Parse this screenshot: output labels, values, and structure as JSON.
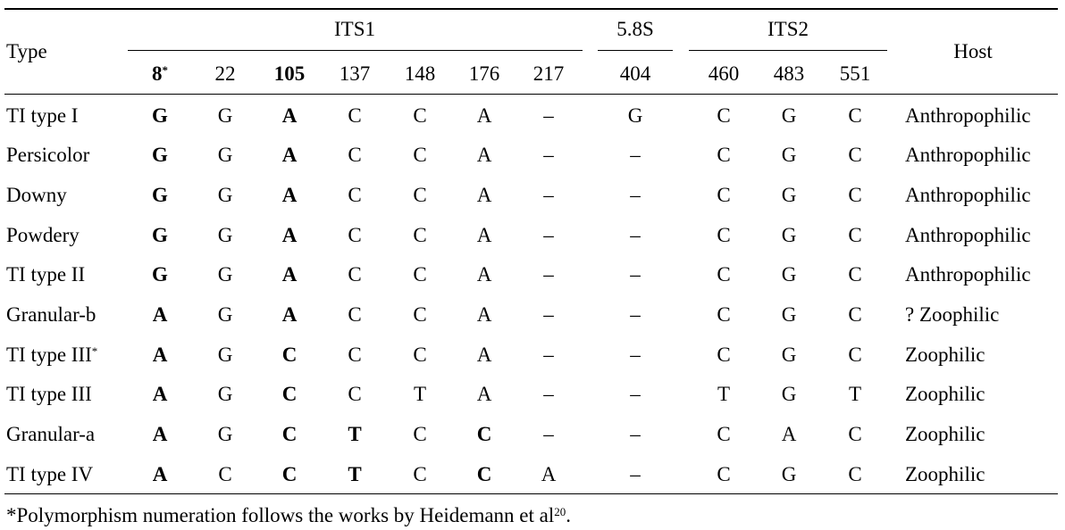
{
  "header": {
    "type_label": "Type",
    "host_label": "Host",
    "groups": [
      {
        "label": "ITS1"
      },
      {
        "label": "5.8S"
      },
      {
        "label": "ITS2"
      }
    ],
    "positions": [
      {
        "label": "8",
        "sup": "*",
        "bold": true
      },
      {
        "label": "22",
        "sup": "",
        "bold": false
      },
      {
        "label": "105",
        "sup": "",
        "bold": true
      },
      {
        "label": "137",
        "sup": "",
        "bold": false
      },
      {
        "label": "148",
        "sup": "",
        "bold": false
      },
      {
        "label": "176",
        "sup": "",
        "bold": false
      },
      {
        "label": "217",
        "sup": "",
        "bold": false
      },
      {
        "label": "404",
        "sup": "",
        "bold": false
      },
      {
        "label": "460",
        "sup": "",
        "bold": false
      },
      {
        "label": "483",
        "sup": "",
        "bold": false
      },
      {
        "label": "551",
        "sup": "",
        "bold": false
      }
    ]
  },
  "rows": [
    {
      "type": "TI type I",
      "type_sup": "",
      "cells": [
        "G",
        "G",
        "A",
        "C",
        "C",
        "A",
        "–",
        "G",
        "C",
        "G",
        "C"
      ],
      "bold": [
        true,
        false,
        true,
        false,
        false,
        false,
        false,
        false,
        false,
        false,
        false
      ],
      "host": "Anthropophilic"
    },
    {
      "type": "Persicolor",
      "type_sup": "",
      "cells": [
        "G",
        "G",
        "A",
        "C",
        "C",
        "A",
        "–",
        "–",
        "C",
        "G",
        "C"
      ],
      "bold": [
        true,
        false,
        true,
        false,
        false,
        false,
        false,
        false,
        false,
        false,
        false
      ],
      "host": "Anthropophilic"
    },
    {
      "type": "Downy",
      "type_sup": "",
      "cells": [
        "G",
        "G",
        "A",
        "C",
        "C",
        "A",
        "–",
        "–",
        "C",
        "G",
        "C"
      ],
      "bold": [
        true,
        false,
        true,
        false,
        false,
        false,
        false,
        false,
        false,
        false,
        false
      ],
      "host": "Anthropophilic"
    },
    {
      "type": "Powdery",
      "type_sup": "",
      "cells": [
        "G",
        "G",
        "A",
        "C",
        "C",
        "A",
        "–",
        "–",
        "C",
        "G",
        "C"
      ],
      "bold": [
        true,
        false,
        true,
        false,
        false,
        false,
        false,
        false,
        false,
        false,
        false
      ],
      "host": "Anthropophilic"
    },
    {
      "type": "TI type II",
      "type_sup": "",
      "cells": [
        "G",
        "G",
        "A",
        "C",
        "C",
        "A",
        "–",
        "–",
        "C",
        "G",
        "C"
      ],
      "bold": [
        true,
        false,
        true,
        false,
        false,
        false,
        false,
        false,
        false,
        false,
        false
      ],
      "host": "Anthropophilic"
    },
    {
      "type": "Granular-b",
      "type_sup": "",
      "cells": [
        "A",
        "G",
        "A",
        "C",
        "C",
        "A",
        "–",
        "–",
        "C",
        "G",
        "C"
      ],
      "bold": [
        true,
        false,
        true,
        false,
        false,
        false,
        false,
        false,
        false,
        false,
        false
      ],
      "host": "? Zoophilic"
    },
    {
      "type": "TI type III",
      "type_sup": "*",
      "cells": [
        "A",
        "G",
        "C",
        "C",
        "C",
        "A",
        "–",
        "–",
        "C",
        "G",
        "C"
      ],
      "bold": [
        true,
        false,
        true,
        false,
        false,
        false,
        false,
        false,
        false,
        false,
        false
      ],
      "host": "Zoophilic"
    },
    {
      "type": "TI type III",
      "type_sup": "",
      "cells": [
        "A",
        "G",
        "C",
        "C",
        "T",
        "A",
        "–",
        "–",
        "T",
        "G",
        "T"
      ],
      "bold": [
        true,
        false,
        true,
        false,
        false,
        false,
        false,
        false,
        false,
        false,
        false
      ],
      "host": "Zoophilic"
    },
    {
      "type": "Granular-a",
      "type_sup": "",
      "cells": [
        "A",
        "G",
        "C",
        "T",
        "C",
        "C",
        "–",
        "–",
        "C",
        "A",
        "C"
      ],
      "bold": [
        true,
        false,
        true,
        true,
        false,
        true,
        false,
        false,
        false,
        false,
        false
      ],
      "host": "Zoophilic"
    },
    {
      "type": "TI type IV",
      "type_sup": "",
      "cells": [
        "A",
        "C",
        "C",
        "T",
        "C",
        "C",
        "A",
        "–",
        "C",
        "G",
        "C"
      ],
      "bold": [
        true,
        false,
        true,
        true,
        false,
        true,
        false,
        false,
        false,
        false,
        false
      ],
      "host": "Zoophilic"
    }
  ],
  "footnote": {
    "text": "*Polymorphism numeration follows the works by Heidemann et al",
    "ref": "20",
    "end": "."
  }
}
